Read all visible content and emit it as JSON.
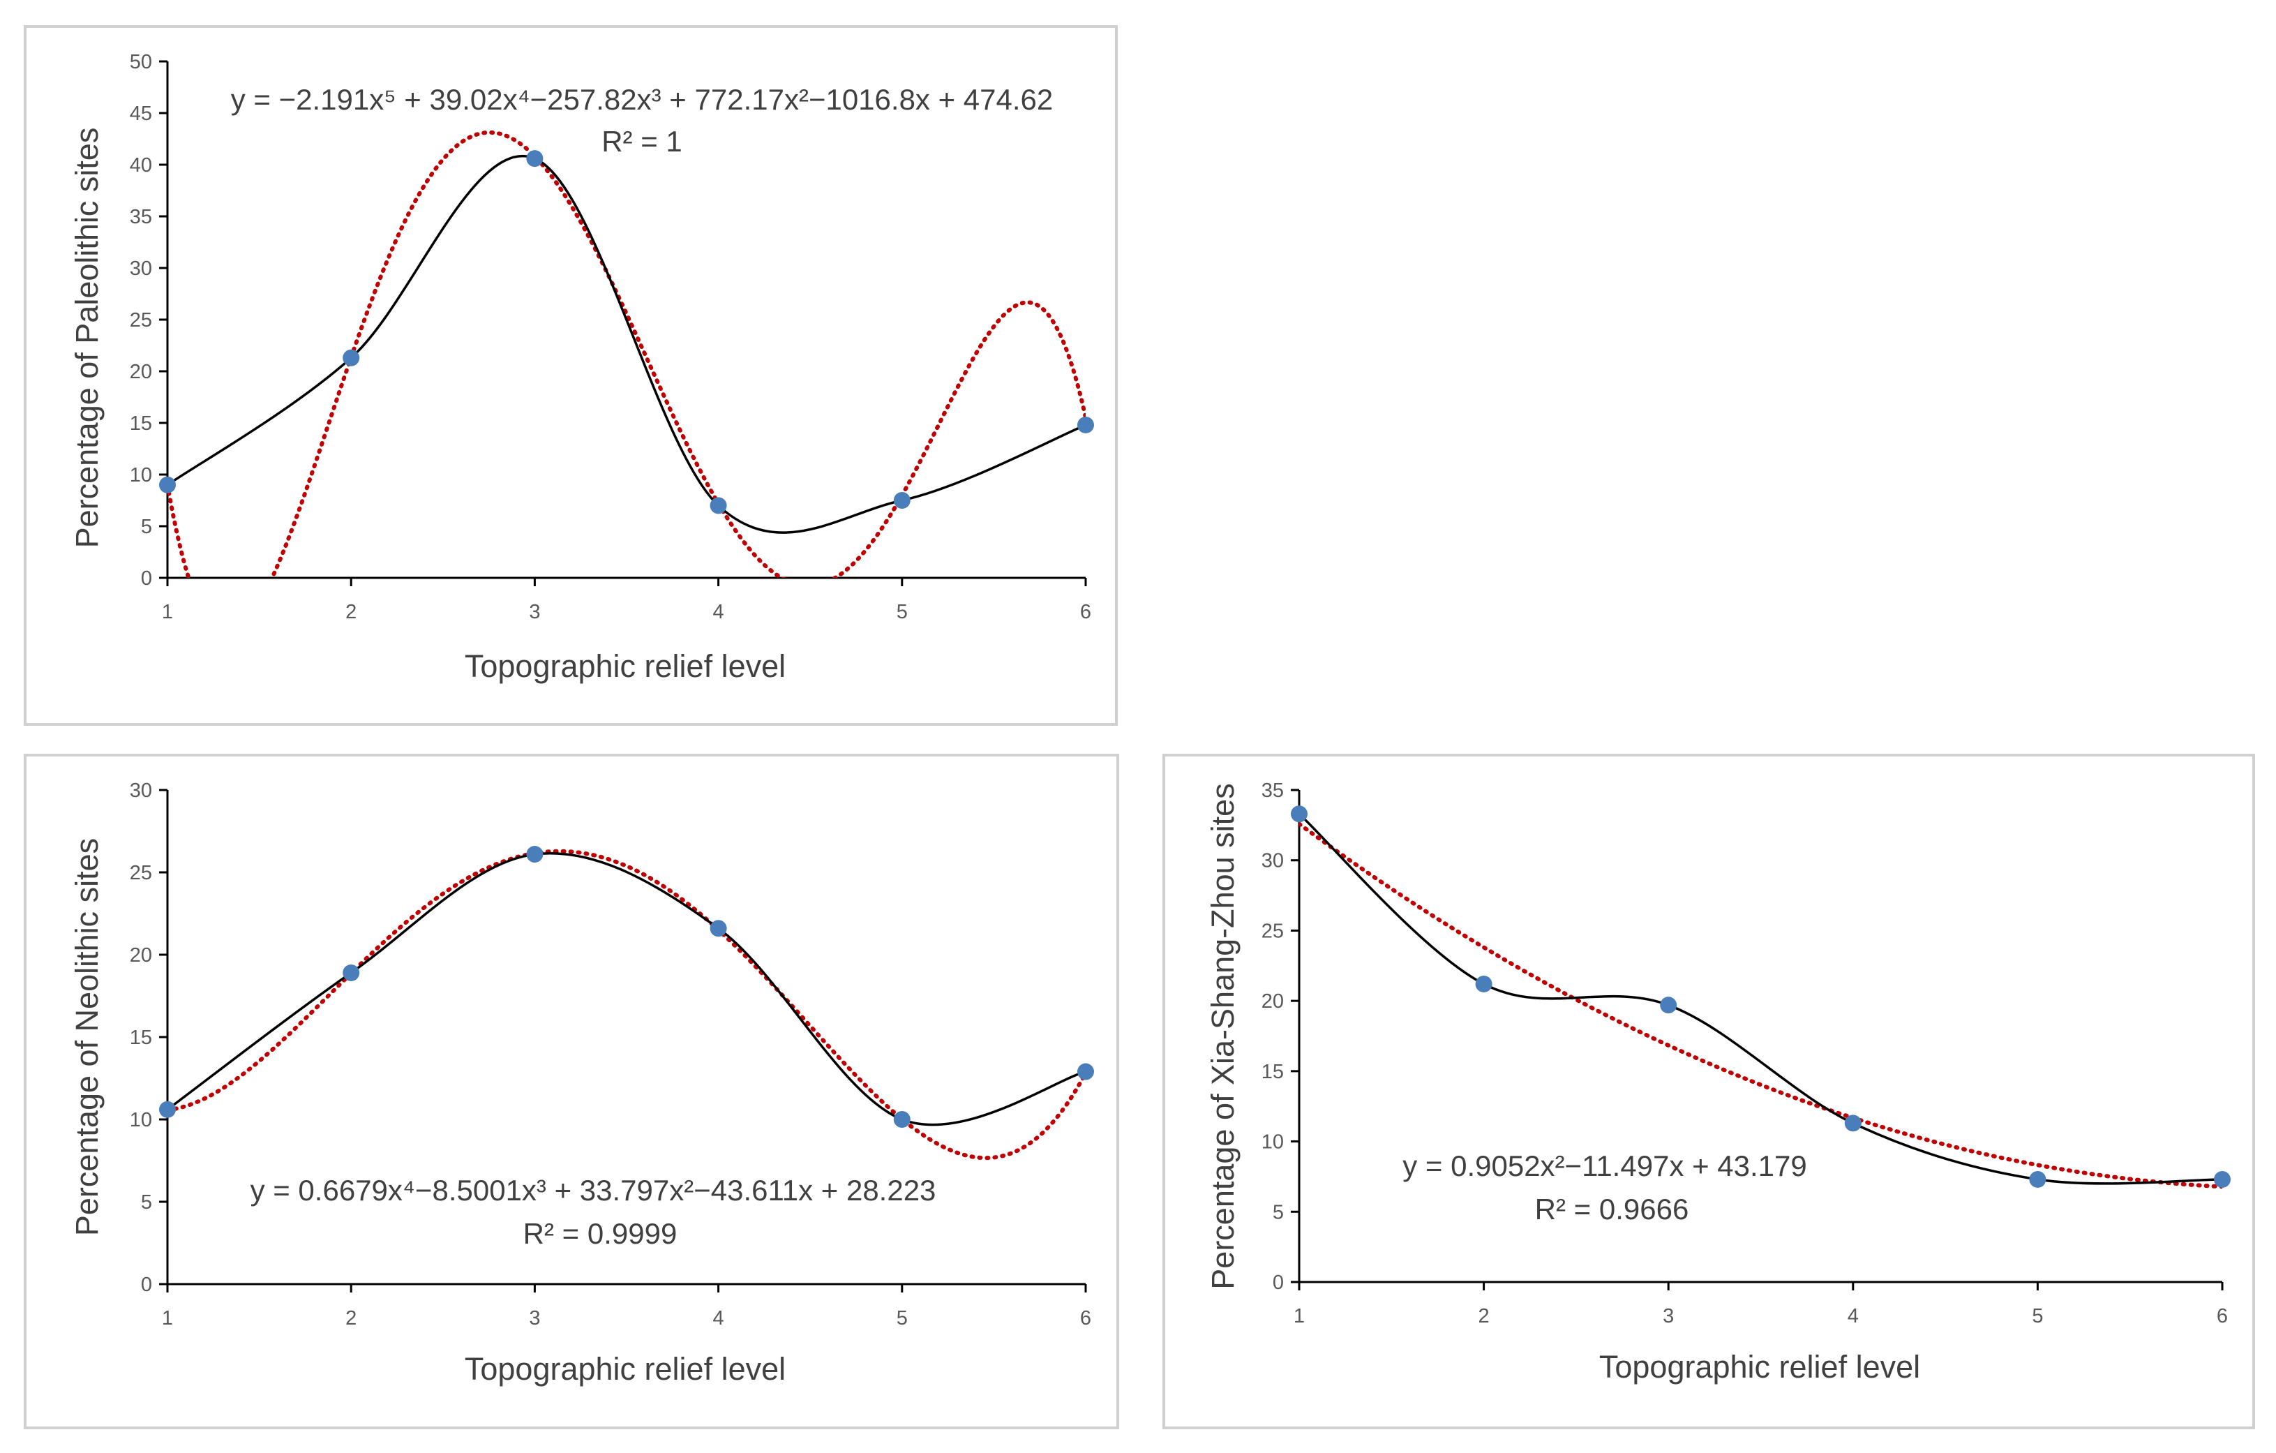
{
  "colors": {
    "actual_line": "#000000",
    "trend_line": "#c00000",
    "marker": "#4a7ebb",
    "axis": "#000000",
    "border": "#d0d0d0"
  },
  "chart_data": [
    {
      "type": "line",
      "title": "",
      "xlabel": "Topographic relief level",
      "ylabel": "Percentage of Paleolithic sites",
      "categories": [
        1,
        2,
        3,
        4,
        5,
        6
      ],
      "x_tick_labels": [
        "1",
        "2",
        "3",
        "4",
        "5",
        "6"
      ],
      "y_tick_labels": [
        "0",
        "5",
        "10",
        "15",
        "20",
        "25",
        "30",
        "35",
        "40",
        "45",
        "50"
      ],
      "ylim": [
        0,
        50
      ],
      "y_step": 5,
      "series": [
        {
          "name": "Paleolithic sites",
          "values": [
            9.0,
            21.3,
            40.6,
            7.0,
            7.5,
            14.8
          ]
        }
      ],
      "trendline": {
        "type": "polynomial",
        "order": 5,
        "coefficients": [
          474.62,
          -1016.8,
          772.17,
          -257.82,
          39.02,
          -2.191
        ],
        "equation": "y = −2.191x⁵ + 39.02x⁴−257.82x³ + 772.17x²−1016.8x + 474.62",
        "r2": "R² = 1"
      }
    },
    {
      "type": "line",
      "title": "",
      "xlabel": "Topographic relief level",
      "ylabel": "Percentage of Neolithic sites",
      "categories": [
        1,
        2,
        3,
        4,
        5,
        6
      ],
      "x_tick_labels": [
        "1",
        "2",
        "3",
        "4",
        "5",
        "6"
      ],
      "y_tick_labels": [
        "0",
        "5",
        "10",
        "15",
        "20",
        "25",
        "30"
      ],
      "ylim": [
        0,
        30
      ],
      "y_step": 5,
      "series": [
        {
          "name": "Neolithic sites",
          "values": [
            10.6,
            18.9,
            26.1,
            21.6,
            10.0,
            12.9
          ]
        }
      ],
      "trendline": {
        "type": "polynomial",
        "order": 4,
        "coefficients": [
          28.223,
          -43.611,
          33.797,
          -8.5001,
          0.6679
        ],
        "equation": "y = 0.6679x⁴−8.5001x³ + 33.797x²−43.611x + 28.223",
        "r2": "R² = 0.9999"
      }
    },
    {
      "type": "line",
      "title": "",
      "xlabel": "Topographic relief level",
      "ylabel": "Percentage of Xia-Shang-Zhou sites",
      "categories": [
        1,
        2,
        3,
        4,
        5,
        6
      ],
      "x_tick_labels": [
        "1",
        "2",
        "3",
        "4",
        "5",
        "6"
      ],
      "y_tick_labels": [
        "0",
        "5",
        "10",
        "15",
        "20",
        "25",
        "30",
        "35"
      ],
      "ylim": [
        0,
        35
      ],
      "y_step": 5,
      "series": [
        {
          "name": "Xia-Shang-Zhou sites",
          "values": [
            33.3,
            21.2,
            19.7,
            11.3,
            7.3,
            7.3
          ]
        }
      ],
      "trendline": {
        "type": "polynomial",
        "order": 2,
        "coefficients": [
          43.179,
          -11.497,
          0.9052
        ],
        "equation": "y = 0.9052x²−11.497x + 43.179",
        "r2": "R² = 0.9666"
      }
    }
  ]
}
